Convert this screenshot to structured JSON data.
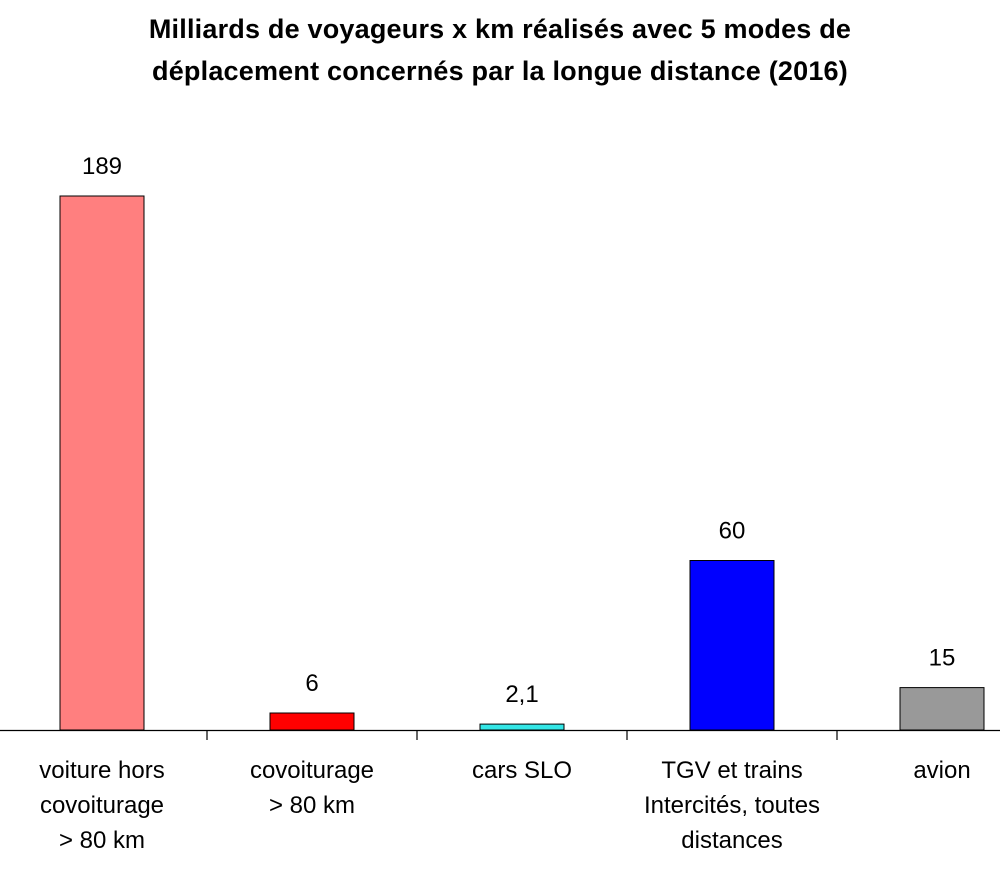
{
  "chart_data": {
    "type": "bar",
    "title": [
      "Milliards de voyageurs x km réalisés avec 5 modes de",
      "déplacement concernés par la longue distance (2016)"
    ],
    "xlabel": "",
    "ylabel": "",
    "grid": false,
    "legend": "none",
    "ylim": [
      0,
      189
    ],
    "categories": [
      [
        "voiture hors",
        "covoiturage",
        "> 80 km"
      ],
      [
        "covoiturage",
        "> 80 km"
      ],
      [
        "cars SLO"
      ],
      [
        "TGV et trains",
        "Intercités, toutes",
        "distances"
      ],
      [
        "avion"
      ]
    ],
    "values": [
      189,
      6,
      2.1,
      60,
      15
    ],
    "data_labels": [
      "189",
      "6",
      "2,1",
      "60",
      "15"
    ],
    "colors": [
      "#ff7f7f",
      "#ff0000",
      "#33e6e6",
      "#0000ff",
      "#999999"
    ]
  }
}
